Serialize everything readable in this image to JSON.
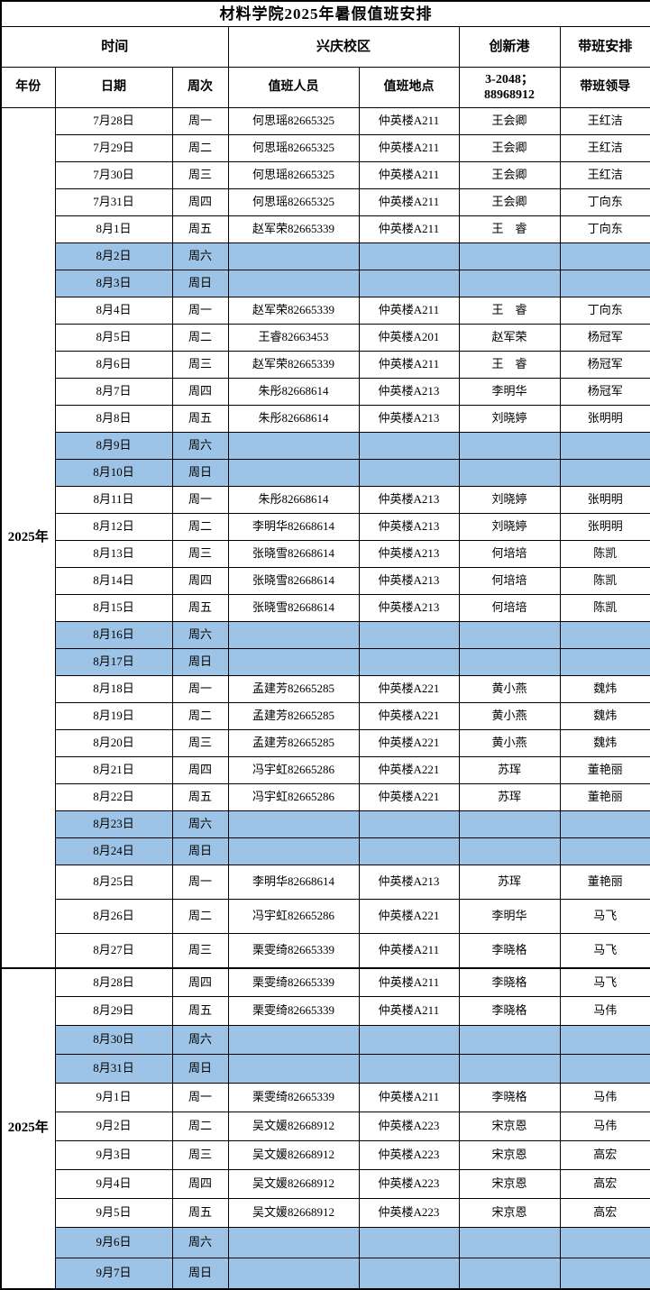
{
  "title": "材料学院2025年暑假值班安排",
  "colors": {
    "weekend_row": "#9DC3E6",
    "border": "#000000",
    "background": "#FFFFFF"
  },
  "header": {
    "group_time": "时间",
    "group_campus": "兴庆校区",
    "group_innovation": "创新港",
    "group_lead": "带班安排",
    "col_year": "年份",
    "col_date": "日期",
    "col_week": "周次",
    "col_person": "值班人员",
    "col_location": "值班地点",
    "col_innovation_phone": "3-2048；\n88968912",
    "col_leader": "带班领导"
  },
  "sections": [
    {
      "year": "2025年",
      "rows": [
        {
          "date": "7月28日",
          "week": "周一",
          "person": "何思瑶82665325",
          "location": "仲英楼A211",
          "innovation": "王会卿",
          "leader": "王红洁"
        },
        {
          "date": "7月29日",
          "week": "周二",
          "person": "何思瑶82665325",
          "location": "仲英楼A211",
          "innovation": "王会卿",
          "leader": "王红洁"
        },
        {
          "date": "7月30日",
          "week": "周三",
          "person": "何思瑶82665325",
          "location": "仲英楼A211",
          "innovation": "王会卿",
          "leader": "王红洁"
        },
        {
          "date": "7月31日",
          "week": "周四",
          "person": "何思瑶82665325",
          "location": "仲英楼A211",
          "innovation": "王会卿",
          "leader": "丁向东"
        },
        {
          "date": "8月1日",
          "week": "周五",
          "person": "赵军荣82665339",
          "location": "仲英楼A211",
          "innovation": "王　睿",
          "leader": "丁向东"
        },
        {
          "date": "8月2日",
          "week": "周六",
          "person": "",
          "location": "",
          "innovation": "",
          "leader": ""
        },
        {
          "date": "8月3日",
          "week": "周日",
          "person": "",
          "location": "",
          "innovation": "",
          "leader": ""
        },
        {
          "date": "8月4日",
          "week": "周一",
          "person": "赵军荣82665339",
          "location": "仲英楼A211",
          "innovation": "王　睿",
          "leader": "丁向东"
        },
        {
          "date": "8月5日",
          "week": "周二",
          "person": "王睿82663453",
          "location": "仲英楼A201",
          "innovation": "赵军荣",
          "leader": "杨冠军"
        },
        {
          "date": "8月6日",
          "week": "周三",
          "person": "赵军荣82665339",
          "location": "仲英楼A211",
          "innovation": "王　睿",
          "leader": "杨冠军"
        },
        {
          "date": "8月7日",
          "week": "周四",
          "person": "朱彤82668614",
          "location": "仲英楼A213",
          "innovation": "李明华",
          "leader": "杨冠军"
        },
        {
          "date": "8月8日",
          "week": "周五",
          "person": "朱彤82668614",
          "location": "仲英楼A213",
          "innovation": "刘晓婷",
          "leader": "张明明"
        },
        {
          "date": "8月9日",
          "week": "周六",
          "person": "",
          "location": "",
          "innovation": "",
          "leader": ""
        },
        {
          "date": "8月10日",
          "week": "周日",
          "person": "",
          "location": "",
          "innovation": "",
          "leader": ""
        },
        {
          "date": "8月11日",
          "week": "周一",
          "person": "朱彤82668614",
          "location": "仲英楼A213",
          "innovation": "刘晓婷",
          "leader": "张明明"
        },
        {
          "date": "8月12日",
          "week": "周二",
          "person": "李明华82668614",
          "location": "仲英楼A213",
          "innovation": "刘晓婷",
          "leader": "张明明"
        },
        {
          "date": "8月13日",
          "week": "周三",
          "person": "张晓雪82668614",
          "location": "仲英楼A213",
          "innovation": "何培培",
          "leader": "陈凯"
        },
        {
          "date": "8月14日",
          "week": "周四",
          "person": "张晓雪82668614",
          "location": "仲英楼A213",
          "innovation": "何培培",
          "leader": "陈凯"
        },
        {
          "date": "8月15日",
          "week": "周五",
          "person": "张晓雪82668614",
          "location": "仲英楼A213",
          "innovation": "何培培",
          "leader": "陈凯"
        },
        {
          "date": "8月16日",
          "week": "周六",
          "person": "",
          "location": "",
          "innovation": "",
          "leader": ""
        },
        {
          "date": "8月17日",
          "week": "周日",
          "person": "",
          "location": "",
          "innovation": "",
          "leader": ""
        },
        {
          "date": "8月18日",
          "week": "周一",
          "person": "孟建芳82665285",
          "location": "仲英楼A221",
          "innovation": "黄小燕",
          "leader": "魏炜"
        },
        {
          "date": "8月19日",
          "week": "周二",
          "person": "孟建芳82665285",
          "location": "仲英楼A221",
          "innovation": "黄小燕",
          "leader": "魏炜"
        },
        {
          "date": "8月20日",
          "week": "周三",
          "person": "孟建芳82665285",
          "location": "仲英楼A221",
          "innovation": "黄小燕",
          "leader": "魏炜"
        },
        {
          "date": "8月21日",
          "week": "周四",
          "person": "冯宇虹82665286",
          "location": "仲英楼A221",
          "innovation": "苏珲",
          "leader": "董艳丽"
        },
        {
          "date": "8月22日",
          "week": "周五",
          "person": "冯宇虹82665286",
          "location": "仲英楼A221",
          "innovation": "苏珲",
          "leader": "董艳丽"
        },
        {
          "date": "8月23日",
          "week": "周六",
          "person": "",
          "location": "",
          "innovation": "",
          "leader": ""
        },
        {
          "date": "8月24日",
          "week": "周日",
          "person": "",
          "location": "",
          "innovation": "",
          "leader": ""
        },
        {
          "date": "8月25日",
          "week": "周一",
          "person": "李明华82668614",
          "location": "仲英楼A213",
          "innovation": "苏珲",
          "leader": "董艳丽"
        },
        {
          "date": "8月26日",
          "week": "周二",
          "person": "冯宇虹82665286",
          "location": "仲英楼A221",
          "innovation": "李明华",
          "leader": "马飞"
        },
        {
          "date": "8月27日",
          "week": "周三",
          "person": "栗雯绮82665339",
          "location": "仲英楼A211",
          "innovation": "李晓格",
          "leader": "马飞"
        }
      ]
    },
    {
      "year": "2025年",
      "rows": [
        {
          "date": "8月28日",
          "week": "周四",
          "person": "栗雯绮82665339",
          "location": "仲英楼A211",
          "innovation": "李晓格",
          "leader": "马飞"
        },
        {
          "date": "8月29日",
          "week": "周五",
          "person": "栗雯绮82665339",
          "location": "仲英楼A211",
          "innovation": "李晓格",
          "leader": "马伟"
        },
        {
          "date": "8月30日",
          "week": "周六",
          "person": "",
          "location": "",
          "innovation": "",
          "leader": ""
        },
        {
          "date": "8月31日",
          "week": "周日",
          "person": "",
          "location": "",
          "innovation": "",
          "leader": ""
        },
        {
          "date": "9月1日",
          "week": "周一",
          "person": "栗雯绮82665339",
          "location": "仲英楼A211",
          "innovation": "李晓格",
          "leader": "马伟"
        },
        {
          "date": "9月2日",
          "week": "周二",
          "person": "吴文媛82668912",
          "location": "仲英楼A223",
          "innovation": "宋京恩",
          "leader": "马伟"
        },
        {
          "date": "9月3日",
          "week": "周三",
          "person": "吴文媛82668912",
          "location": "仲英楼A223",
          "innovation": "宋京恩",
          "leader": "高宏"
        },
        {
          "date": "9月4日",
          "week": "周四",
          "person": "吴文媛82668912",
          "location": "仲英楼A223",
          "innovation": "宋京恩",
          "leader": "高宏"
        },
        {
          "date": "9月5日",
          "week": "周五",
          "person": "吴文媛82668912",
          "location": "仲英楼A223",
          "innovation": "宋京恩",
          "leader": "高宏"
        },
        {
          "date": "9月6日",
          "week": "周六",
          "person": "",
          "location": "",
          "innovation": "",
          "leader": ""
        },
        {
          "date": "9月7日",
          "week": "周日",
          "person": "",
          "location": "",
          "innovation": "",
          "leader": ""
        }
      ]
    }
  ]
}
